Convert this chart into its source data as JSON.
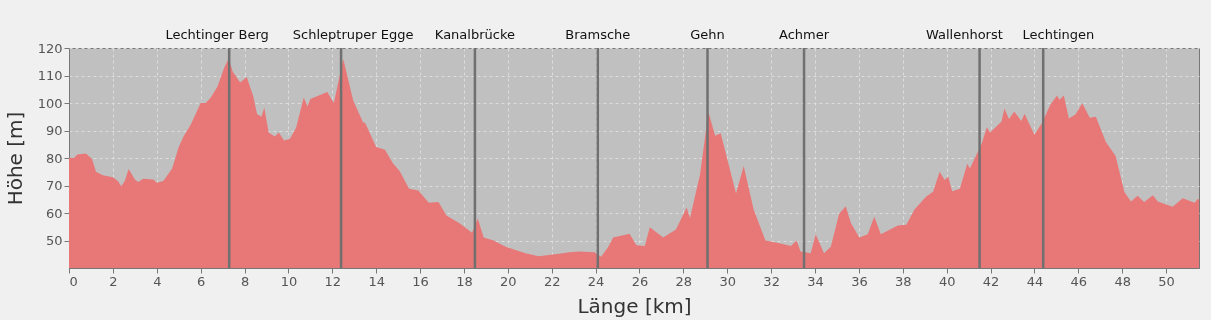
{
  "chart_data": {
    "type": "area",
    "xlabel": "Länge [km]",
    "ylabel": "Höhe [m]",
    "xlim": [
      0,
      51.5
    ],
    "ylim": [
      40,
      120
    ],
    "xticks": [
      0,
      2,
      4,
      6,
      8,
      10,
      12,
      14,
      16,
      18,
      20,
      22,
      24,
      26,
      28,
      30,
      32,
      34,
      36,
      38,
      40,
      42,
      44,
      46,
      48,
      50
    ],
    "yticks": [
      50,
      60,
      70,
      80,
      90,
      100,
      110,
      120
    ],
    "grid": true,
    "series": [
      {
        "color": "#e87878",
        "x": [
          0,
          0.23,
          0.38,
          0.77,
          1.05,
          1.23,
          1.54,
          2,
          2.23,
          2.38,
          2.54,
          2.72,
          3,
          3.15,
          3.38,
          3.85,
          4,
          4.3,
          4.7,
          5,
          5.23,
          5.54,
          6,
          6.23,
          6.46,
          6.77,
          7.08,
          7.28,
          7.46,
          7.8,
          8.1,
          8.4,
          8.57,
          8.77,
          8.9,
          9.1,
          9.38,
          9.56,
          9.8,
          10.07,
          10.35,
          10.7,
          10.87,
          11,
          11.77,
          12.07,
          12.5,
          12.95,
          13.4,
          13.5,
          14,
          14.4,
          14.77,
          15.07,
          15.5,
          15.92,
          16.4,
          16.84,
          17.2,
          17.8,
          18.37,
          18.63,
          18.9,
          19.36,
          19.9,
          20.8,
          21.4,
          22.34,
          22.8,
          23.26,
          23.95,
          24.25,
          24.56,
          24.8,
          25.55,
          25.86,
          26.24,
          26.47,
          27.08,
          27.66,
          28.15,
          28.3,
          28.76,
          29.14,
          29.45,
          29.7,
          30.4,
          30.75,
          31.2,
          31.74,
          32.43,
          32.9,
          33.16,
          33.34,
          33.8,
          34.03,
          34.41,
          34.72,
          35.1,
          35.4,
          35.64,
          36.02,
          36.4,
          36.7,
          37,
          37.77,
          38.16,
          38.54,
          39.07,
          39.38,
          39.68,
          39.91,
          40.07,
          40.25,
          40.6,
          40.94,
          41.06,
          41.21,
          41.6,
          41.83,
          41.98,
          42.5,
          42.63,
          42.84,
          43.08,
          43.4,
          43.55,
          44,
          44.34,
          44.73,
          45.03,
          45.14,
          45.34,
          45.57,
          45.87,
          46.18,
          46.52,
          46.8,
          47.25,
          47.7,
          48.1,
          48.4,
          48.7,
          49,
          49.4,
          49.62,
          50.3,
          50.76,
          51.3,
          51.45,
          51.5
        ],
        "values": [
          80,
          80,
          81.3,
          81.6,
          79.6,
          75,
          73.7,
          73,
          71.6,
          69.7,
          71.6,
          76,
          72.2,
          71.3,
          72.5,
          72.2,
          71,
          71.6,
          76.2,
          84,
          88,
          92,
          100,
          100,
          102,
          106,
          113,
          116.2,
          111.5,
          107.5,
          109.5,
          102.4,
          96,
          95,
          98.4,
          89.3,
          87.8,
          89.3,
          86.4,
          87,
          91,
          102,
          98.7,
          101.5,
          104,
          100,
          116,
          101,
          93,
          92.7,
          84,
          83,
          78,
          75.3,
          68.8,
          68.2,
          63.7,
          64,
          59.1,
          56.3,
          52.8,
          58,
          51.1,
          50,
          47.7,
          45.4,
          44.3,
          45.2,
          45.7,
          46,
          45.7,
          44.1,
          47.5,
          51.1,
          52.5,
          48.3,
          48,
          54.8,
          51.1,
          54,
          62,
          58.2,
          74,
          96.7,
          88.1,
          89,
          67.1,
          77.1,
          61.4,
          50,
          48.9,
          48,
          50,
          46,
          45.4,
          52.3,
          45.4,
          47.7,
          59.7,
          62.5,
          56.3,
          51.1,
          52.3,
          58.6,
          52.3,
          55.5,
          55.7,
          61.4,
          66,
          67.7,
          75,
          72,
          73.3,
          67.9,
          68.8,
          77.9,
          76.2,
          78.7,
          85.3,
          91.2,
          89.3,
          93.3,
          98,
          94.2,
          96.9,
          93.5,
          96.1,
          88.5,
          92.7,
          99.5,
          102.7,
          101.2,
          102.7,
          94.4,
          95.8,
          99.9,
          94.6,
          95,
          85.9,
          80.7,
          67.6,
          64.2,
          66.3,
          64,
          66.5,
          64.2,
          62.3,
          65.4,
          63.7,
          65.2,
          64.8
        ]
      }
    ],
    "ref_lines": [
      {
        "axis": "x",
        "value": 7.3,
        "label": "Lechtinger Berg",
        "color": "#707070"
      },
      {
        "axis": "x",
        "value": 12.4,
        "label": "Schleptruper Egge",
        "color": "#707070"
      },
      {
        "axis": "x",
        "value": 18.5,
        "label": "Kanalbrücke",
        "color": "#707070"
      },
      {
        "axis": "x",
        "value": 24.1,
        "label": "Bramsche",
        "color": "#707070"
      },
      {
        "axis": "x",
        "value": 29.1,
        "label": "Gehn",
        "color": "#707070"
      },
      {
        "axis": "x",
        "value": 33.5,
        "label": "Achmer",
        "color": "#707070"
      },
      {
        "axis": "x",
        "value": 41.5,
        "label": "Wallenhorst",
        "color": "#707070"
      },
      {
        "axis": "x",
        "value": 44.4,
        "label": "Lechtingen",
        "color": "#707070"
      }
    ]
  }
}
